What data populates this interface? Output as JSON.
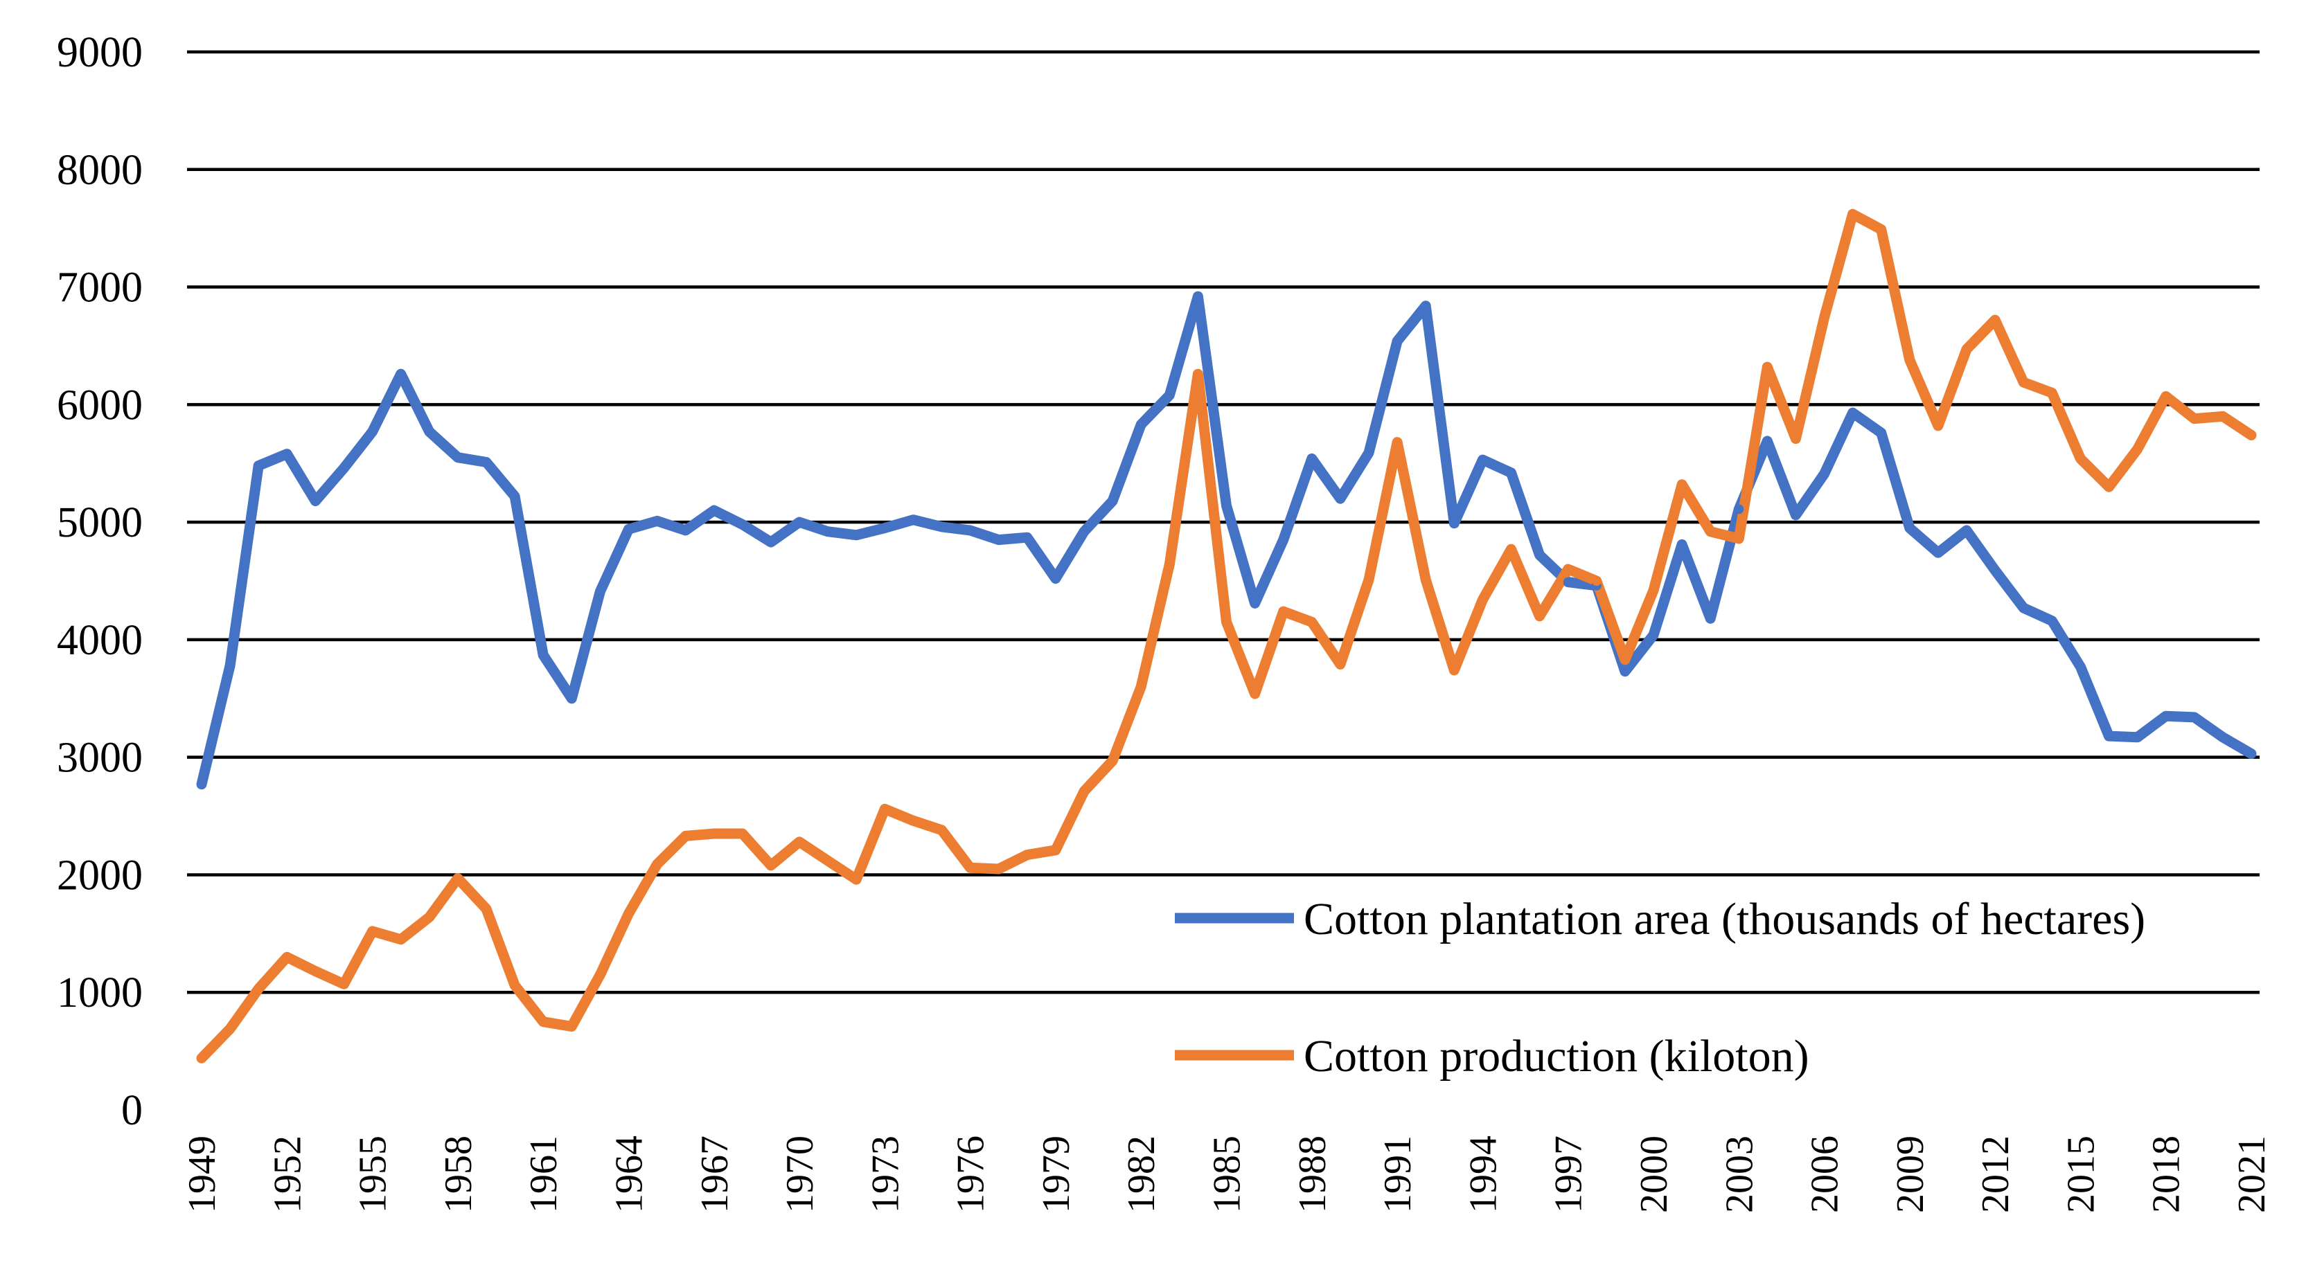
{
  "chart_data": {
    "type": "line",
    "title": "",
    "xlabel": "",
    "ylabel": "",
    "ylim": [
      0,
      9000
    ],
    "y_ticks": [
      0,
      1000,
      2000,
      3000,
      4000,
      5000,
      6000,
      7000,
      8000,
      9000
    ],
    "y_tick_labels": [
      "0",
      "1000",
      "2000",
      "3000",
      "4000",
      "5000",
      "6000",
      "7000",
      "8000",
      "9000"
    ],
    "x_tick_labels": [
      "1949",
      "1952",
      "1955",
      "1958",
      "1961",
      "1964",
      "1967",
      "1970",
      "1973",
      "1976",
      "1979",
      "1982",
      "1985",
      "1988",
      "1991",
      "1994",
      "1997",
      "2000",
      "2003",
      "2006",
      "2009",
      "2012",
      "2015",
      "2018",
      "2021"
    ],
    "grid": true,
    "legend_position": "right",
    "x": [
      1949,
      1950,
      1951,
      1952,
      1953,
      1954,
      1955,
      1956,
      1957,
      1958,
      1959,
      1960,
      1961,
      1962,
      1963,
      1964,
      1965,
      1966,
      1967,
      1968,
      1969,
      1970,
      1971,
      1972,
      1973,
      1974,
      1975,
      1976,
      1977,
      1978,
      1979,
      1980,
      1981,
      1982,
      1983,
      1984,
      1985,
      1986,
      1987,
      1988,
      1989,
      1990,
      1991,
      1992,
      1993,
      1994,
      1995,
      1996,
      1997,
      1998,
      1999,
      2000,
      2001,
      2002,
      2003,
      2004,
      2005,
      2006,
      2007,
      2008,
      2009,
      2010,
      2011,
      2012,
      2013,
      2014,
      2015,
      2016,
      2017,
      2018,
      2019,
      2020,
      2021
    ],
    "series": [
      {
        "name": "Cotton plantation area (thousands of hectares)",
        "color": "#4472c4",
        "values": [
          2770,
          3780,
          5480,
          5580,
          5180,
          5460,
          5770,
          6260,
          5770,
          5550,
          5510,
          5220,
          3870,
          3500,
          4410,
          4940,
          5010,
          4930,
          5100,
          4980,
          4830,
          5000,
          4920,
          4890,
          4950,
          5020,
          4960,
          4930,
          4850,
          4870,
          4520,
          4920,
          5180,
          5830,
          6080,
          6920,
          5140,
          4310,
          4850,
          5540,
          5200,
          5590,
          6540,
          6840,
          4990,
          5530,
          5420,
          4720,
          4490,
          4460,
          3730,
          4040,
          4810,
          4180,
          5110,
          5690,
          5060,
          5410,
          5930,
          5760,
          4950,
          4740,
          4930,
          4590,
          4270,
          4160,
          3770,
          3180,
          3170,
          3350,
          3340,
          3170,
          3030
        ]
      },
      {
        "name": "Cotton production (kiloton)",
        "color": "#ed7d31",
        "values": [
          440,
          690,
          1030,
          1300,
          1180,
          1070,
          1520,
          1450,
          1640,
          1970,
          1710,
          1060,
          750,
          710,
          1150,
          1670,
          2090,
          2330,
          2350,
          2350,
          2080,
          2280,
          2120,
          1960,
          2560,
          2460,
          2380,
          2060,
          2050,
          2170,
          2210,
          2710,
          2970,
          3600,
          4640,
          6260,
          4150,
          3540,
          4240,
          4150,
          3790,
          4510,
          5680,
          4510,
          3740,
          4340,
          4770,
          4200,
          4600,
          4500,
          3830,
          4420,
          5320,
          4920,
          4860,
          6320,
          5710,
          6740,
          7620,
          7490,
          6380,
          5820,
          6470,
          6720,
          6190,
          6100,
          5540,
          5300,
          5620,
          6070,
          5880,
          5900,
          5740
        ]
      }
    ]
  }
}
